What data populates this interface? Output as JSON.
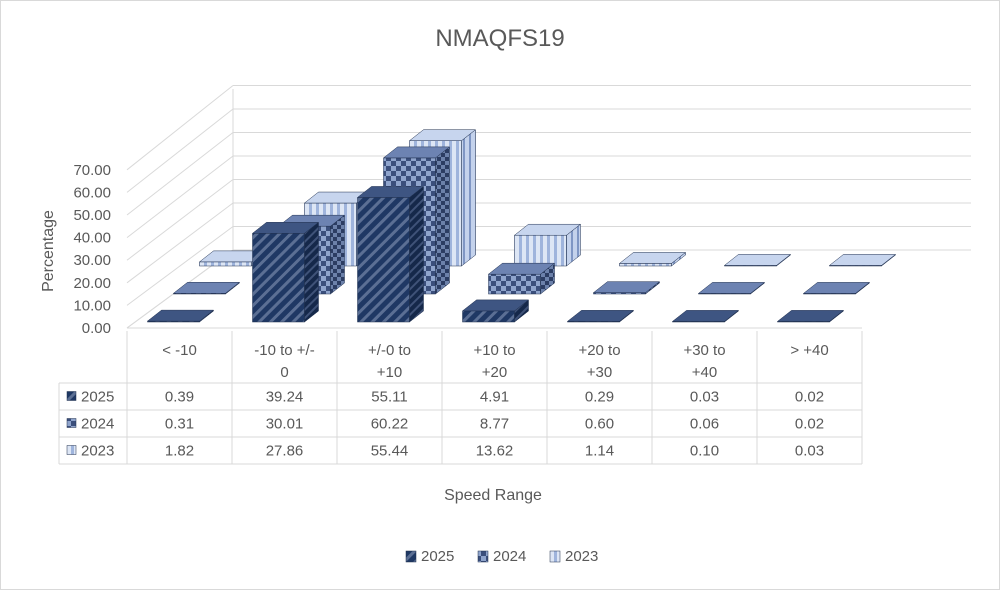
{
  "chart_data": {
    "type": "bar",
    "variant": "3d-clustered-column-with-data-table",
    "title": "NMAQFS19",
    "xlabel": "Speed Range",
    "ylabel": "Percentage",
    "ylim": [
      0,
      70
    ],
    "yticks": [
      "0.00",
      "10.00",
      "20.00",
      "30.00",
      "40.00",
      "50.00",
      "60.00",
      "70.00"
    ],
    "grid": true,
    "legend": "bottom",
    "categories": [
      [
        "< -10"
      ],
      [
        "-10 to +/-",
        "0"
      ],
      [
        "+/-0 to",
        "+10"
      ],
      [
        "+10 to",
        "+20"
      ],
      [
        "+20 to",
        "+30"
      ],
      [
        "+30 to",
        "+40"
      ],
      [
        "> +40"
      ]
    ],
    "series": [
      {
        "name": "2025",
        "values": [
          0.39,
          39.24,
          55.11,
          4.91,
          0.29,
          0.03,
          0.02
        ],
        "labels": [
          "0.39",
          "39.24",
          "55.11",
          "4.91",
          "0.29",
          "0.03",
          "0.02"
        ],
        "color": "#1f3864",
        "pattern": "diagonal"
      },
      {
        "name": "2024",
        "values": [
          0.31,
          30.01,
          60.22,
          8.77,
          0.6,
          0.06,
          0.02
        ],
        "labels": [
          "0.31",
          "30.01",
          "60.22",
          "8.77",
          "0.60",
          "0.06",
          "0.02"
        ],
        "color": "#4f6a9e",
        "pattern": "checker"
      },
      {
        "name": "2023",
        "values": [
          1.82,
          27.86,
          55.44,
          13.62,
          1.14,
          0.1,
          0.03
        ],
        "labels": [
          "1.82",
          "27.86",
          "55.44",
          "13.62",
          "1.14",
          "0.10",
          "0.03"
        ],
        "color": "#b4c7e7",
        "pattern": "vertical"
      }
    ]
  }
}
